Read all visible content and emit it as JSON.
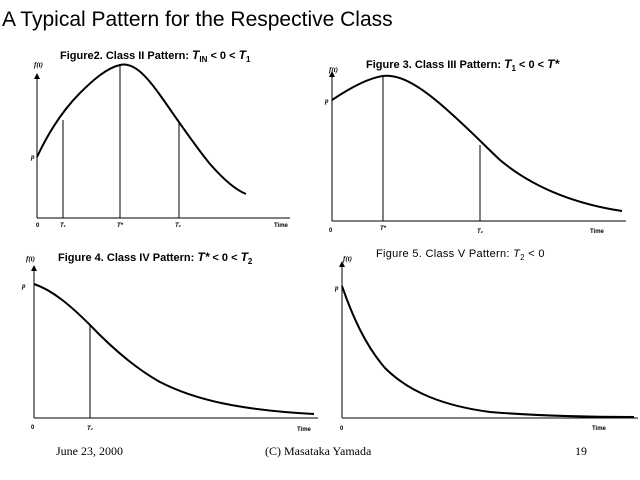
{
  "slide": {
    "title": "A Typical Pattern for the Respective Class"
  },
  "figures": {
    "fig2": {
      "title_prefix": "Figure2.  Class II Pattern: ",
      "t_var": "T",
      "t_sub": "IN",
      "mid": " < 0 < ",
      "t2_var": "T",
      "t2_sub": "1",
      "y_label": "f(t)",
      "p_label": "p",
      "origin": "0",
      "tick_t1": "T₁",
      "tick_tstar": "T*",
      "tick_t2": "T₂",
      "x_label": "Time"
    },
    "fig3": {
      "title_prefix": "Figure 3.  Class III Pattern: ",
      "t_var": "T",
      "t_sub": "1",
      "mid": " < 0 < ",
      "t2_var": "T*",
      "y_label": "f(t)",
      "p_label": "p",
      "origin": "0",
      "tick_tstar": "T*",
      "tick_t2": "T₂",
      "x_label": "Time"
    },
    "fig4": {
      "title_prefix": "Figure 4. Class IV Pattern: ",
      "t_var": "T*",
      "mid": " < 0 < ",
      "t2_var": "T",
      "t2_sub": "2",
      "y_label": "f(t)",
      "p_label": "p",
      "origin": "0",
      "tick_t2": "T₂",
      "x_label": "Time"
    },
    "fig5": {
      "title_prefix": "Figure 5. Class V Pattern: ",
      "t_var": "T",
      "t_sub": "2",
      "suffix": " < 0",
      "y_label": "f(t)",
      "p_label": "p",
      "origin": "0",
      "x_label": "Time"
    }
  },
  "footer": {
    "date": "June 23, 2000",
    "copyright": "(C) Masataka Yamada",
    "page": "19"
  }
}
